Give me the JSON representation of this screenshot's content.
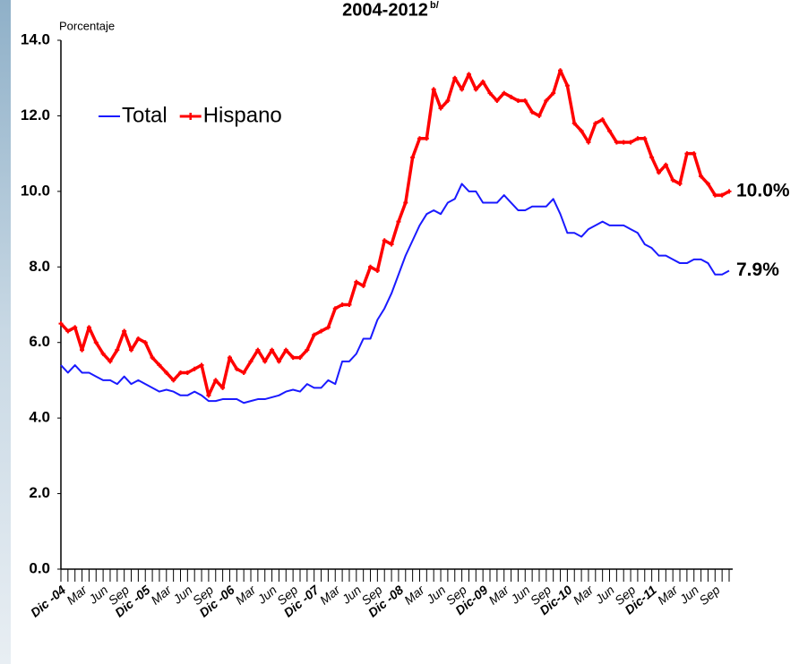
{
  "chart_data": {
    "type": "line",
    "title": "2004-2012",
    "title_superscript": "b/",
    "y_label": "Porcentaje",
    "categories": [
      "Dic -04",
      null,
      null,
      "Mar",
      null,
      null,
      "Jun",
      null,
      null,
      "Sep",
      null,
      null,
      "Dic -05",
      null,
      null,
      "Mar",
      null,
      null,
      "Jun",
      null,
      null,
      "Sep",
      null,
      null,
      "Dic -06",
      null,
      null,
      "Mar",
      null,
      null,
      "Jun",
      null,
      null,
      "Sep",
      null,
      null,
      "Dic -07",
      null,
      null,
      "Mar",
      null,
      null,
      "Jun",
      null,
      null,
      "Sep",
      null,
      null,
      "Dic -08",
      null,
      null,
      "Mar",
      null,
      null,
      "Jun",
      null,
      null,
      "Sep",
      null,
      null,
      "Dic-09",
      null,
      null,
      "Mar",
      null,
      null,
      "Jun",
      null,
      null,
      "Sep",
      null,
      null,
      "Dic-10",
      null,
      null,
      "Mar",
      null,
      null,
      "Jun",
      null,
      null,
      "Sep",
      null,
      null,
      "Dic-11",
      null,
      null,
      "Mar",
      null,
      null,
      "Jun",
      null,
      null,
      "Sep",
      null,
      null
    ],
    "series": [
      {
        "name": "Total",
        "color": "#1a1aff",
        "values": [
          5.4,
          5.2,
          5.4,
          5.2,
          5.2,
          5.1,
          5.0,
          5.0,
          4.9,
          5.1,
          4.9,
          5.0,
          4.9,
          4.8,
          4.7,
          4.75,
          4.7,
          4.6,
          4.6,
          4.7,
          4.6,
          4.45,
          4.45,
          4.5,
          4.5,
          4.5,
          4.4,
          4.45,
          4.5,
          4.5,
          4.55,
          4.6,
          4.7,
          4.75,
          4.7,
          4.9,
          4.8,
          4.8,
          5.0,
          4.9,
          5.5,
          5.5,
          5.7,
          6.1,
          6.1,
          6.6,
          6.9,
          7.3,
          7.8,
          8.3,
          8.7,
          9.1,
          9.4,
          9.5,
          9.4,
          9.7,
          9.8,
          10.2,
          10.0,
          10.0,
          9.7,
          9.7,
          9.7,
          9.9,
          9.7,
          9.5,
          9.5,
          9.6,
          9.6,
          9.6,
          9.8,
          9.4,
          8.9,
          8.9,
          8.8,
          9.0,
          9.1,
          9.2,
          9.1,
          9.1,
          9.1,
          9.0,
          8.9,
          8.6,
          8.5,
          8.3,
          8.3,
          8.2,
          8.1,
          8.1,
          8.2,
          8.2,
          8.1,
          7.8,
          7.8,
          7.9
        ],
        "value_labels": [
          null,
          null,
          null,
          null,
          null,
          null,
          null,
          null,
          null,
          null,
          null,
          null,
          null,
          null,
          null,
          null,
          null,
          null,
          null,
          null,
          null,
          null,
          null,
          null,
          null,
          null,
          null,
          null,
          null,
          null,
          null,
          null,
          null,
          null,
          null,
          null,
          null,
          null,
          null,
          null,
          null,
          null,
          null,
          null,
          null,
          null,
          null,
          null,
          null,
          null,
          null,
          null,
          null,
          null,
          null,
          null,
          null,
          null,
          null,
          null,
          null,
          null,
          null,
          null,
          null,
          null,
          null,
          null,
          null,
          null,
          null,
          null,
          null,
          null,
          null,
          null,
          null,
          null,
          null,
          null,
          null,
          null,
          null,
          null,
          null,
          null,
          null,
          null,
          null,
          null,
          null,
          null,
          null,
          null,
          null,
          "7.9%"
        ]
      },
      {
        "name": "Hispano",
        "color": "#ff0000",
        "values": [
          6.5,
          6.3,
          6.4,
          5.8,
          6.4,
          6.0,
          5.7,
          5.5,
          5.8,
          6.3,
          5.8,
          6.1,
          6.0,
          5.6,
          5.4,
          5.2,
          5.0,
          5.2,
          5.2,
          5.3,
          5.4,
          4.6,
          5.0,
          4.8,
          5.6,
          5.3,
          5.2,
          5.5,
          5.8,
          5.5,
          5.8,
          5.5,
          5.8,
          5.6,
          5.6,
          5.8,
          6.2,
          6.3,
          6.4,
          6.9,
          7.0,
          7.0,
          7.6,
          7.5,
          8.0,
          7.9,
          8.7,
          8.6,
          9.2,
          9.7,
          10.9,
          11.4,
          11.4,
          12.7,
          12.2,
          12.4,
          13.0,
          12.7,
          13.1,
          12.7,
          12.9,
          12.6,
          12.4,
          12.6,
          12.5,
          12.4,
          12.4,
          12.1,
          12.0,
          12.4,
          12.6,
          13.2,
          12.8,
          11.8,
          11.6,
          11.3,
          11.8,
          11.9,
          11.6,
          11.3,
          11.3,
          11.3,
          11.4,
          11.4,
          10.9,
          10.5,
          10.7,
          10.3,
          10.2,
          11.0,
          11.0,
          10.4,
          10.2,
          9.9,
          9.9,
          10.0
        ],
        "value_labels": [
          null,
          null,
          null,
          null,
          null,
          null,
          null,
          null,
          null,
          null,
          null,
          null,
          null,
          null,
          null,
          null,
          null,
          null,
          null,
          null,
          null,
          null,
          null,
          null,
          null,
          null,
          null,
          null,
          null,
          null,
          null,
          null,
          null,
          null,
          null,
          null,
          null,
          null,
          null,
          null,
          null,
          null,
          null,
          null,
          null,
          null,
          null,
          null,
          null,
          null,
          null,
          null,
          null,
          null,
          null,
          null,
          null,
          null,
          null,
          null,
          null,
          null,
          null,
          null,
          null,
          null,
          null,
          null,
          null,
          null,
          null,
          null,
          null,
          null,
          null,
          null,
          null,
          null,
          null,
          null,
          null,
          null,
          null,
          null,
          null,
          null,
          null,
          null,
          null,
          null,
          null,
          null,
          null,
          null,
          null,
          "10.0%"
        ]
      }
    ],
    "ylim": [
      0,
      14
    ],
    "yticks": [
      {
        "value": 0,
        "label": "0.0"
      },
      {
        "value": 2,
        "label": "2.0"
      },
      {
        "value": 4,
        "label": "4.0"
      },
      {
        "value": 6,
        "label": "6.0"
      },
      {
        "value": 8,
        "label": "8.0"
      },
      {
        "value": 10,
        "label": "10.0"
      },
      {
        "value": 12,
        "label": "12.0"
      },
      {
        "value": 14,
        "label": "14.0"
      }
    ],
    "grid": false,
    "legend": "top-left"
  }
}
